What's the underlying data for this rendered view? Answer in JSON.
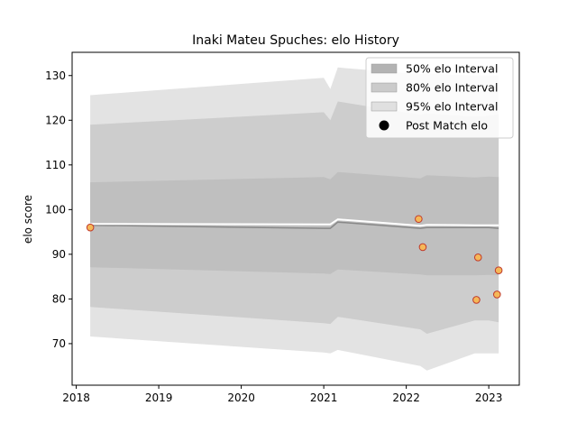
{
  "chart_data": {
    "type": "line",
    "title": "Inaki Mateu Spuches: elo History",
    "xlabel": "",
    "ylabel": "elo score",
    "xlim": [
      2017.95,
      2023.37
    ],
    "ylim": [
      60.7,
      135.2
    ],
    "x_ticks": [
      2018,
      2019,
      2020,
      2021,
      2022,
      2023
    ],
    "y_ticks": [
      70,
      80,
      90,
      100,
      110,
      120,
      130
    ],
    "grid": false,
    "legend_position": "top-right",
    "interval_x": [
      2018.17,
      2021.0,
      2021.08,
      2021.17,
      2022.17,
      2022.25,
      2022.83,
      2023.0,
      2023.12
    ],
    "intervals": [
      {
        "name": "95% elo Interval",
        "color": "#e3e3e3",
        "upper": [
          125.6,
          129.5,
          127.0,
          131.8,
          130.3,
          130.5,
          130.0,
          130.0,
          130.0
        ],
        "lower": [
          71.6,
          68.0,
          67.8,
          68.6,
          65.0,
          64.0,
          67.8,
          67.8,
          67.8
        ]
      },
      {
        "name": "80% elo Interval",
        "color": "#cdcdcd",
        "upper": [
          119.0,
          121.8,
          120.0,
          124.2,
          121.2,
          121.5,
          120.8,
          121.0,
          121.3
        ],
        "lower": [
          78.2,
          74.6,
          74.4,
          76.0,
          73.2,
          72.2,
          75.2,
          75.2,
          74.8
        ]
      },
      {
        "name": "50% elo Interval",
        "color": "#bfbfbf",
        "upper": [
          106.1,
          107.3,
          106.8,
          108.4,
          107.0,
          107.7,
          107.2,
          107.4,
          107.3
        ],
        "lower": [
          87.1,
          85.7,
          85.6,
          86.6,
          85.5,
          85.3,
          85.3,
          85.4,
          85.3
        ]
      }
    ],
    "mean_line": {
      "values": [
        96.5,
        95.8,
        95.8,
        97.2,
        95.8,
        96.0,
        96.0,
        96.0,
        95.8
      ],
      "color": "#888888"
    },
    "median_line": {
      "values": [
        96.8,
        96.7,
        96.7,
        97.8,
        96.4,
        96.6,
        96.5,
        96.5,
        96.5
      ],
      "color": "#ffffff"
    },
    "series": [
      {
        "name": "Post Match elo",
        "type": "scatter",
        "color": "#f5b858",
        "edge": "#c0392b",
        "x": [
          2018.17,
          2022.15,
          2022.2,
          2022.85,
          2022.87,
          2023.1,
          2023.12
        ],
        "y": [
          96.0,
          97.9,
          91.6,
          79.8,
          89.3,
          81.0,
          86.4
        ]
      }
    ],
    "legend": [
      {
        "label": "50% elo Interval",
        "kind": "patch",
        "color": "#b3b3b3"
      },
      {
        "label": "80% elo Interval",
        "kind": "patch",
        "color": "#cbcbcb"
      },
      {
        "label": "95% elo Interval",
        "kind": "patch",
        "color": "#e0e0e0"
      },
      {
        "label": "Post Match elo",
        "kind": "marker",
        "color": "#000000"
      }
    ]
  }
}
